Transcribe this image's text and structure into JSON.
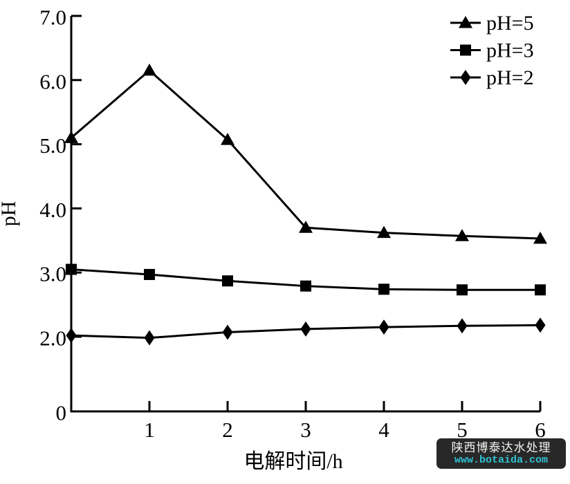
{
  "chart_data": {
    "type": "line",
    "title": "",
    "xlabel": "电解时间/h",
    "ylabel": "pH",
    "x": [
      0,
      1,
      2,
      3,
      4,
      5,
      6
    ],
    "x_tick_labels": [
      "1",
      "2",
      "3",
      "4",
      "5",
      "6"
    ],
    "y_tick_labels": [
      "0",
      "2.0",
      "3.0",
      "4.0",
      "5.0",
      "6.0",
      "7.0"
    ],
    "ylim": [
      0,
      7.0
    ],
    "xlim": [
      0,
      6
    ],
    "y_axis_break_between_0_and_2": true,
    "grid": false,
    "legend_position": "top-right",
    "line_color": "#000000",
    "series": [
      {
        "name": "pH=2",
        "marker": "diamond",
        "values": [
          2.02,
          1.97,
          2.07,
          2.12,
          2.15,
          2.17,
          2.18
        ]
      },
      {
        "name": "pH=3",
        "marker": "square",
        "values": [
          3.05,
          2.97,
          2.87,
          2.79,
          2.74,
          2.73,
          2.73
        ]
      },
      {
        "name": "pH=5",
        "marker": "triangle",
        "values": [
          5.1,
          6.15,
          5.07,
          3.7,
          3.62,
          3.57,
          3.53
        ]
      }
    ]
  },
  "watermark": {
    "line1": "陕西博泰达水处理",
    "line2": "www.botaida.com",
    "bg_color": "#282828",
    "line1_color": "#f2f2f2",
    "line2_color": "#2fc2d4"
  }
}
